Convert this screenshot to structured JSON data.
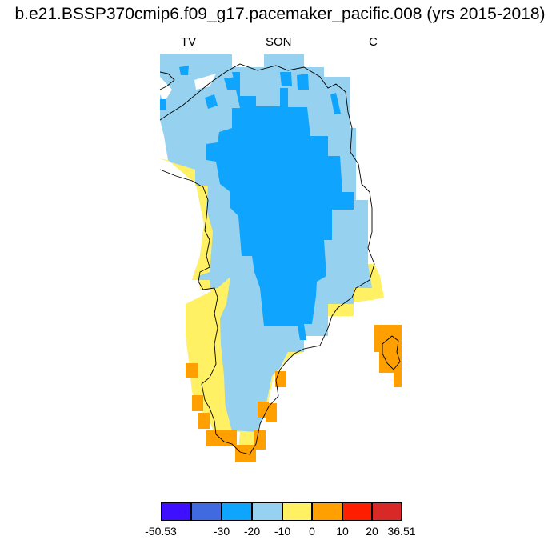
{
  "title": "b.e21.BSSP370cmip6.f09_g17.pacemaker_pacific.008 (yrs 2015-2018)",
  "labels": {
    "left": "TV",
    "center": "SON",
    "right": "C"
  },
  "legend": {
    "colors": [
      "#3f0fff",
      "#4169e1",
      "#0fa5ff",
      "#96d2f0",
      "#fff064",
      "#ffa000",
      "#ff1e00",
      "#d92828"
    ],
    "ticks": [
      "-50.53",
      "-30",
      "-20",
      "-10",
      "0",
      "10",
      "20",
      "36.51"
    ]
  },
  "map": {
    "region": "Greenland",
    "level_colors": {
      "le_-20": "#0fa5ff",
      "-20_-10": "#96d2f0",
      "-10_0": "#fff064",
      "0_10": "#ffa000",
      "deep": "#1e90ff"
    }
  }
}
